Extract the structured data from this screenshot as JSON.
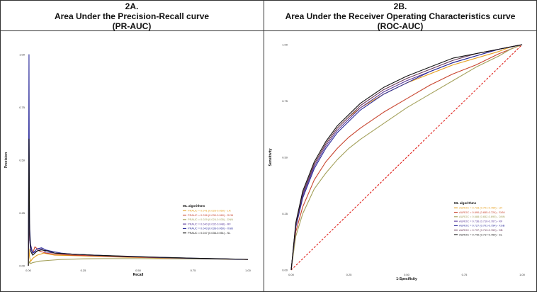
{
  "header": {
    "left": {
      "number": "2A.",
      "title": "Area Under the Precision-Recall curve",
      "abbr": "(PR-AUC)"
    },
    "right": {
      "number": "2B.",
      "title": "Area Under the Receiver Operating Characteristics curve",
      "abbr": "(ROC-AUC)"
    }
  },
  "legend_title": "ML algorithms",
  "colors": {
    "LR": "#e6a020",
    "SVM": "#c8442e",
    "DNN": "#a3a05a",
    "RF": "#5a3a9a",
    "XGB": "#2a2a9a",
    "DB": "#6a3a5a",
    "SL": "#111111",
    "diagonal": "#e0201a"
  },
  "chart_data": [
    {
      "type": "line",
      "title": "Area Under the Precision-Recall curve (PR-AUC)",
      "xlabel": "Recall",
      "ylabel": "Precision",
      "xlim": [
        0,
        1
      ],
      "ylim": [
        0,
        1
      ],
      "xticks": [
        "0.00",
        "0.25",
        "0.50",
        "0.75",
        "1.00"
      ],
      "yticks": [
        "0.00",
        "0.25",
        "0.50",
        "0.75",
        "1.00"
      ],
      "series": [
        {
          "key": "LR",
          "legend": "PRAUC = 0.041 (0.026-0.050) - LR",
          "x": [
            0,
            0.003,
            0.006,
            0.01,
            0.02,
            0.04,
            0.07,
            0.12,
            0.2,
            0.3,
            0.45,
            0.6,
            0.75,
            0.9,
            1.0
          ],
          "y": [
            0,
            0.08,
            0.04,
            0.02,
            0.035,
            0.05,
            0.06,
            0.05,
            0.048,
            0.045,
            0.04,
            0.037,
            0.034,
            0.031,
            0.03
          ]
        },
        {
          "key": "SVM",
          "legend": "PRAUC = 0.036 (0.030-0.060) - SVM",
          "x": [
            0,
            0.003,
            0.006,
            0.01,
            0.015,
            0.02,
            0.03,
            0.05,
            0.08,
            0.12,
            0.2,
            0.3,
            0.45,
            0.6,
            0.75,
            0.9,
            1.0
          ],
          "y": [
            0,
            0.25,
            0.12,
            0.1,
            0.08,
            0.06,
            0.09,
            0.07,
            0.06,
            0.055,
            0.05,
            0.047,
            0.042,
            0.038,
            0.035,
            0.032,
            0.03
          ]
        },
        {
          "key": "DNN",
          "legend": "PRAUC = 0.029 (0.024-0.035) - DNN",
          "x": [
            0,
            0.005,
            0.01,
            0.02,
            0.05,
            0.1,
            0.15,
            0.25,
            0.35,
            0.5,
            0.65,
            0.8,
            0.9,
            1.0
          ],
          "y": [
            0,
            0.02,
            0.01,
            0.015,
            0.022,
            0.026,
            0.03,
            0.033,
            0.034,
            0.034,
            0.033,
            0.032,
            0.031,
            0.03
          ]
        },
        {
          "key": "RF",
          "legend": "PRAUC = 0.040 (0.032-0.048) - RF",
          "x": [
            0,
            0.003,
            0.006,
            0.01,
            0.02,
            0.04,
            0.06,
            0.08,
            0.12,
            0.2,
            0.3,
            0.45,
            0.6,
            0.75,
            0.9,
            1.0
          ],
          "y": [
            0,
            0.35,
            0.12,
            0.08,
            0.06,
            0.07,
            0.08,
            0.065,
            0.06,
            0.055,
            0.05,
            0.044,
            0.039,
            0.035,
            0.032,
            0.03
          ]
        },
        {
          "key": "XGB",
          "legend": "PRAUC = 0.043 (0.036-0.060) - XGB",
          "x": [
            0,
            0.003,
            0.005,
            0.01,
            0.02,
            0.04,
            0.06,
            0.08,
            0.1,
            0.15,
            0.2,
            0.3,
            0.45,
            0.6,
            0.75,
            0.9,
            1.0
          ],
          "y": [
            0,
            1.0,
            0.2,
            0.1,
            0.06,
            0.08,
            0.085,
            0.075,
            0.07,
            0.06,
            0.055,
            0.05,
            0.044,
            0.04,
            0.036,
            0.032,
            0.03
          ]
        },
        {
          "key": "SL",
          "legend": "PRAUC = 0.047 (0.036-0.051) - SL",
          "x": [
            0,
            0.003,
            0.006,
            0.01,
            0.02,
            0.04,
            0.06,
            0.09,
            0.12,
            0.2,
            0.3,
            0.45,
            0.6,
            0.75,
            0.9,
            1.0
          ],
          "y": [
            0,
            0.6,
            0.15,
            0.07,
            0.05,
            0.07,
            0.075,
            0.07,
            0.06,
            0.055,
            0.05,
            0.045,
            0.04,
            0.036,
            0.033,
            0.03
          ]
        }
      ]
    },
    {
      "type": "line",
      "title": "Area Under the Receiver Operating Characteristics curve (ROC-AUC)",
      "xlabel": "1-Specificity",
      "ylabel": "Sensitivity",
      "xlim": [
        0,
        1
      ],
      "ylim": [
        0,
        1
      ],
      "xticks": [
        "0.00",
        "0.25",
        "0.50",
        "0.75",
        "1.00"
      ],
      "yticks": [
        "0.00",
        "0.25",
        "0.50",
        "0.75",
        "1.00"
      ],
      "diagonal": true,
      "series": [
        {
          "key": "LR",
          "legend": "AUROC = 0.733 (0.701-0.765) - LR",
          "x": [
            0,
            0.02,
            0.05,
            0.1,
            0.15,
            0.2,
            0.25,
            0.3,
            0.4,
            0.5,
            0.6,
            0.7,
            0.8,
            0.9,
            0.95,
            1.0
          ],
          "y": [
            0,
            0.2,
            0.33,
            0.47,
            0.56,
            0.63,
            0.68,
            0.72,
            0.78,
            0.83,
            0.87,
            0.91,
            0.94,
            0.97,
            0.99,
            1.0
          ]
        },
        {
          "key": "SVM",
          "legend": "AUROC = 0.690 (0.655-0.724) - SVM",
          "x": [
            0,
            0.02,
            0.05,
            0.1,
            0.15,
            0.2,
            0.25,
            0.3,
            0.4,
            0.5,
            0.6,
            0.7,
            0.8,
            0.9,
            0.95,
            1.0
          ],
          "y": [
            0,
            0.17,
            0.28,
            0.4,
            0.48,
            0.54,
            0.59,
            0.63,
            0.7,
            0.76,
            0.82,
            0.87,
            0.91,
            0.96,
            0.98,
            1.0
          ]
        },
        {
          "key": "DNN",
          "legend": "AUROC = 0.688 (0.652-0.695) - DNN",
          "x": [
            0,
            0.02,
            0.05,
            0.1,
            0.15,
            0.2,
            0.25,
            0.3,
            0.4,
            0.5,
            0.6,
            0.7,
            0.8,
            0.9,
            0.95,
            1.0
          ],
          "y": [
            0,
            0.15,
            0.25,
            0.36,
            0.43,
            0.49,
            0.54,
            0.58,
            0.65,
            0.72,
            0.78,
            0.84,
            0.9,
            0.95,
            0.98,
            1.0
          ]
        },
        {
          "key": "RF",
          "legend": "AUROC = 0.736 (0.710-0.767) - RF",
          "x": [
            0,
            0.02,
            0.05,
            0.1,
            0.15,
            0.2,
            0.25,
            0.3,
            0.4,
            0.5,
            0.6,
            0.7,
            0.8,
            0.9,
            0.95,
            1.0
          ],
          "y": [
            0,
            0.2,
            0.33,
            0.46,
            0.55,
            0.62,
            0.67,
            0.72,
            0.79,
            0.84,
            0.88,
            0.92,
            0.95,
            0.98,
            0.99,
            1.0
          ]
        },
        {
          "key": "XGB",
          "legend": "AUROC = 0.727 (0.701-0.754) - XGB",
          "x": [
            0,
            0.02,
            0.05,
            0.1,
            0.15,
            0.2,
            0.25,
            0.3,
            0.4,
            0.5,
            0.6,
            0.7,
            0.8,
            0.9,
            0.95,
            1.0
          ],
          "y": [
            0,
            0.19,
            0.32,
            0.45,
            0.54,
            0.61,
            0.66,
            0.71,
            0.78,
            0.83,
            0.88,
            0.92,
            0.95,
            0.98,
            0.99,
            1.0
          ]
        },
        {
          "key": "DB",
          "legend": "AUROC = 0.737 (0.713-0.763) - DB",
          "x": [
            0,
            0.02,
            0.05,
            0.1,
            0.15,
            0.2,
            0.25,
            0.3,
            0.4,
            0.5,
            0.6,
            0.7,
            0.8,
            0.9,
            0.95,
            1.0
          ],
          "y": [
            0,
            0.2,
            0.34,
            0.47,
            0.56,
            0.63,
            0.68,
            0.73,
            0.8,
            0.85,
            0.89,
            0.93,
            0.96,
            0.98,
            0.99,
            1.0
          ]
        },
        {
          "key": "SL",
          "legend": "AUROC = 0.742 (0.717-0.769) - SL",
          "x": [
            0,
            0.02,
            0.05,
            0.1,
            0.15,
            0.2,
            0.25,
            0.3,
            0.4,
            0.5,
            0.6,
            0.7,
            0.8,
            0.9,
            0.95,
            1.0
          ],
          "y": [
            0,
            0.21,
            0.35,
            0.48,
            0.57,
            0.64,
            0.69,
            0.74,
            0.81,
            0.86,
            0.9,
            0.94,
            0.96,
            0.98,
            0.99,
            1.0
          ]
        }
      ]
    }
  ]
}
